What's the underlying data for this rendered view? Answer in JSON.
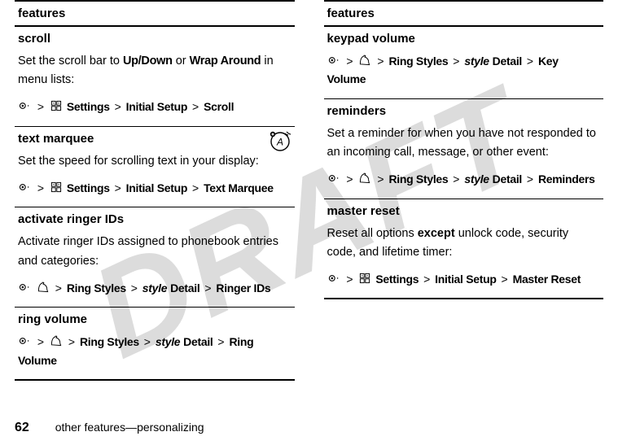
{
  "watermark": "DRAFT",
  "columns": {
    "left": {
      "header": "features",
      "rows": [
        {
          "title": "scroll",
          "body_html": "Set the scroll bar to <span class='condbold'>Up/Down</span> or <span class='condbold'>Wrap Around</span> in menu lists:",
          "path": [
            {
              "t": "icon",
              "v": "center"
            },
            {
              "t": "gt"
            },
            {
              "t": "icon",
              "v": "tools"
            },
            {
              "t": "condbold",
              "v": "Settings"
            },
            {
              "t": "gt"
            },
            {
              "t": "condbold",
              "v": "Initial Setup"
            },
            {
              "t": "gt"
            },
            {
              "t": "condbold",
              "v": "Scroll"
            }
          ]
        },
        {
          "title": "text marquee",
          "badge": true,
          "body_html": "Set the speed for scrolling text in your display:",
          "path": [
            {
              "t": "icon",
              "v": "center"
            },
            {
              "t": "gt"
            },
            {
              "t": "icon",
              "v": "tools"
            },
            {
              "t": "condbold",
              "v": "Settings"
            },
            {
              "t": "gt"
            },
            {
              "t": "condbold",
              "v": "Initial Setup"
            },
            {
              "t": "gt"
            },
            {
              "t": "condbold",
              "v": "Text Marquee"
            }
          ]
        },
        {
          "title": "activate ringer IDs",
          "body_html": "Activate ringer IDs assigned to phonebook entries and categories:",
          "path": [
            {
              "t": "icon",
              "v": "center"
            },
            {
              "t": "icon",
              "v": "ring"
            },
            {
              "t": "gt"
            },
            {
              "t": "condbold",
              "v": "Ring Styles"
            },
            {
              "t": "gt"
            },
            {
              "t": "italcond",
              "v": "style"
            },
            {
              "t": "space"
            },
            {
              "t": "condbold",
              "v": "Detail"
            },
            {
              "t": "gt"
            },
            {
              "t": "condbold",
              "v": "Ringer IDs"
            }
          ]
        },
        {
          "title": "ring volume",
          "path": [
            {
              "t": "icon",
              "v": "center"
            },
            {
              "t": "gt"
            },
            {
              "t": "icon",
              "v": "ring"
            },
            {
              "t": "gt"
            },
            {
              "t": "condbold",
              "v": "Ring Styles"
            },
            {
              "t": "gt"
            },
            {
              "t": "italcond",
              "v": "style"
            },
            {
              "t": "space"
            },
            {
              "t": "condbold",
              "v": "Detail"
            },
            {
              "t": "gt"
            },
            {
              "t": "condbold",
              "v": "Ring Volume"
            }
          ]
        }
      ]
    },
    "right": {
      "header": "features",
      "rows": [
        {
          "title": "keypad volume",
          "path": [
            {
              "t": "icon",
              "v": "center"
            },
            {
              "t": "gt"
            },
            {
              "t": "icon",
              "v": "ring"
            },
            {
              "t": "gt"
            },
            {
              "t": "condbold",
              "v": "Ring Styles"
            },
            {
              "t": "gt"
            },
            {
              "t": "italcond",
              "v": "style"
            },
            {
              "t": "space"
            },
            {
              "t": "condbold",
              "v": "Detail"
            },
            {
              "t": "gt"
            },
            {
              "t": "condbold",
              "v": "Key Volume"
            }
          ]
        },
        {
          "title": "reminders",
          "body_html": "Set a reminder for when you have not responded to an incoming call, message, or other event:",
          "path": [
            {
              "t": "icon",
              "v": "center"
            },
            {
              "t": "gt"
            },
            {
              "t": "icon",
              "v": "ring"
            },
            {
              "t": "gt"
            },
            {
              "t": "condbold",
              "v": "Ring Styles"
            },
            {
              "t": "gt"
            },
            {
              "t": "italcond",
              "v": "style"
            },
            {
              "t": "space"
            },
            {
              "t": "condbold",
              "v": "Detail"
            },
            {
              "t": "gt"
            },
            {
              "t": "condbold",
              "v": "Reminders"
            }
          ]
        },
        {
          "title": "master reset",
          "body_html": "Reset all options <span class='bold'>except</span> unlock code, security code, and lifetime timer:",
          "path": [
            {
              "t": "icon",
              "v": "center"
            },
            {
              "t": "gt"
            },
            {
              "t": "icon",
              "v": "tools"
            },
            {
              "t": "condbold",
              "v": "Settings"
            },
            {
              "t": "gt"
            },
            {
              "t": "condbold",
              "v": "Initial Setup"
            },
            {
              "t": "gt"
            },
            {
              "t": "condbold",
              "v": "Master Reset"
            }
          ]
        }
      ]
    }
  },
  "footer": {
    "page": "62",
    "text": "other features—personalizing"
  },
  "gt_symbol": ">"
}
